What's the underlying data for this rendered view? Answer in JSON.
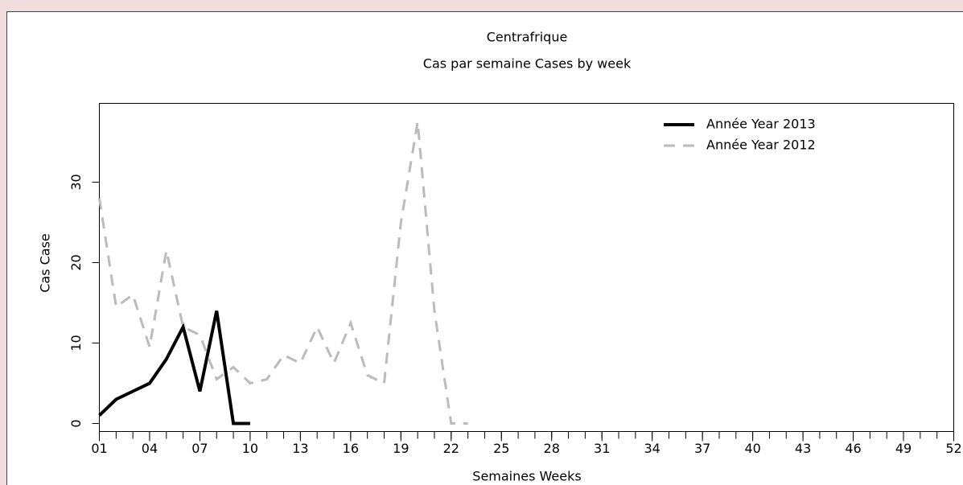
{
  "chart_data": {
    "type": "line",
    "title": "Centrafrique",
    "subtitle": "Cas par semaine Cases by week",
    "x_label": "Semaines Weeks",
    "y_label": "Cas Case",
    "x": [
      1,
      2,
      3,
      4,
      5,
      6,
      7,
      8,
      9,
      10,
      11,
      12,
      13,
      14,
      15,
      16,
      17,
      18,
      19,
      20,
      21,
      22,
      23
    ],
    "series": [
      {
        "name": "Année Year 2013",
        "color": "#000000",
        "dashed": false,
        "values": [
          1,
          3,
          4,
          5,
          8,
          12,
          4,
          14,
          0,
          0,
          null,
          null,
          null,
          null,
          null,
          null,
          null,
          null,
          null,
          null,
          null,
          null,
          null
        ]
      },
      {
        "name": "Année Year 2012",
        "color": "#bbbbbb",
        "dashed": true,
        "values": [
          28,
          14.5,
          16,
          9.5,
          21.5,
          12,
          11,
          5.5,
          7,
          5,
          5.5,
          8.5,
          7.5,
          12,
          7.5,
          12.5,
          6,
          5,
          25,
          37.5,
          14,
          0,
          0
        ]
      }
    ],
    "xlim": [
      1,
      52
    ],
    "ylim": [
      -1,
      39.8
    ],
    "xticks": [
      {
        "value": 1,
        "label": "01"
      },
      {
        "value": 4,
        "label": "04"
      },
      {
        "value": 7,
        "label": "07"
      },
      10,
      13,
      16,
      19,
      22,
      25,
      28,
      31,
      34,
      37,
      40,
      43,
      46,
      49,
      52
    ],
    "x_minor_ticks": [
      1,
      2,
      3,
      4,
      5,
      6,
      7,
      8,
      9,
      10,
      11,
      12,
      13,
      14,
      15,
      16,
      17,
      18,
      19,
      20,
      21,
      22,
      23,
      24,
      25,
      26,
      27,
      28,
      29,
      30,
      31,
      32,
      33,
      34,
      35,
      36,
      37,
      38,
      39,
      40,
      41,
      42,
      43,
      44,
      45,
      46,
      47,
      48,
      49,
      50,
      51,
      52
    ],
    "yticks": [
      0,
      10,
      20,
      30
    ],
    "legend": "topright"
  }
}
